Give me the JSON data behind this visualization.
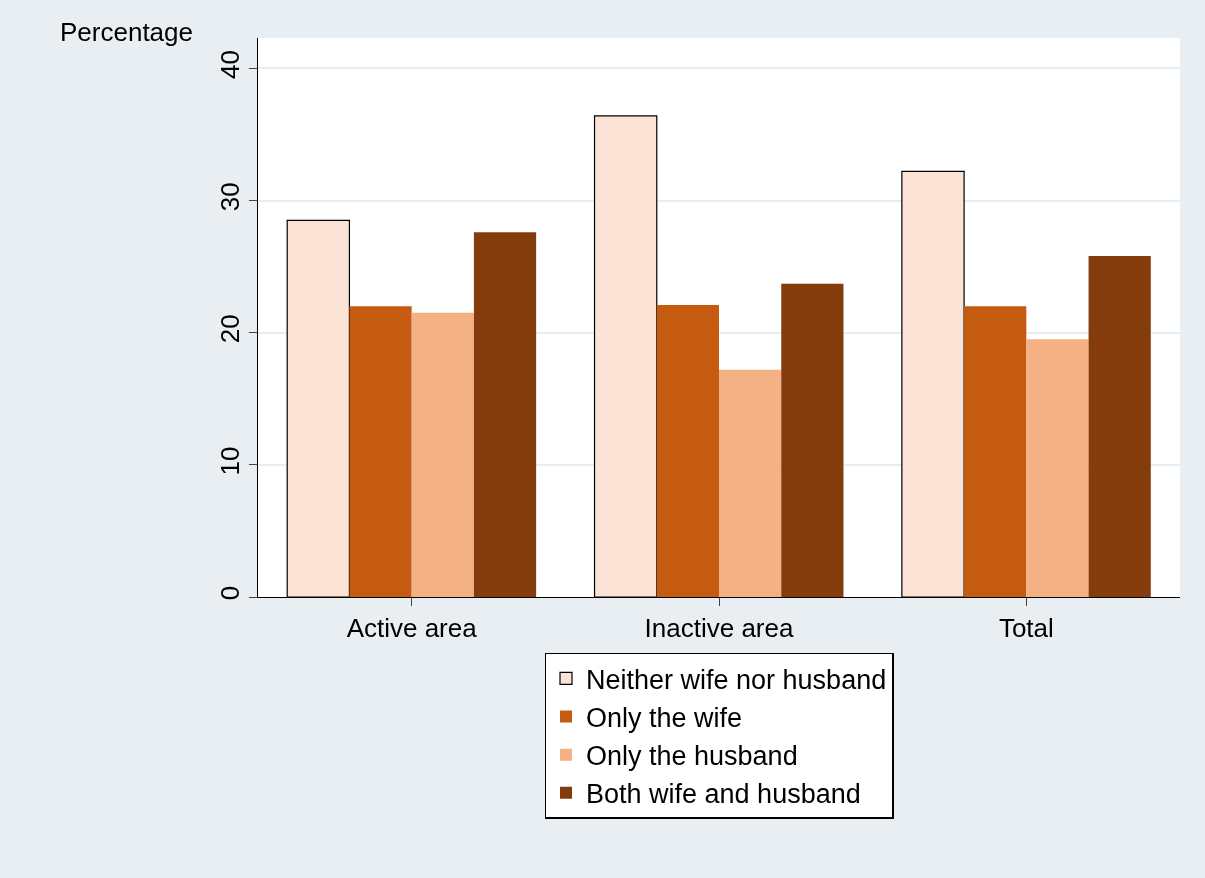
{
  "chart_data": {
    "type": "bar",
    "ylabel": "Percentage",
    "categories": [
      "Active area",
      "Inactive area",
      "Total"
    ],
    "series": [
      {
        "name": "Neither wife nor husband",
        "color": "#fbe3d6",
        "values": [
          28.5,
          36.4,
          32.2
        ]
      },
      {
        "name": "Only the wife",
        "color": "#c55a11",
        "values": [
          22.0,
          22.1,
          22.0
        ]
      },
      {
        "name": "Only the husband",
        "color": "#f4b183",
        "values": [
          21.5,
          17.2,
          19.5
        ]
      },
      {
        "name": "Both wife and husband",
        "color": "#843c0c",
        "values": [
          27.6,
          23.7,
          25.8
        ]
      }
    ],
    "ylim": [
      0,
      42.3
    ],
    "yticks": [
      0,
      10,
      20,
      30,
      40
    ],
    "grid": "y",
    "legend": "bottom"
  }
}
